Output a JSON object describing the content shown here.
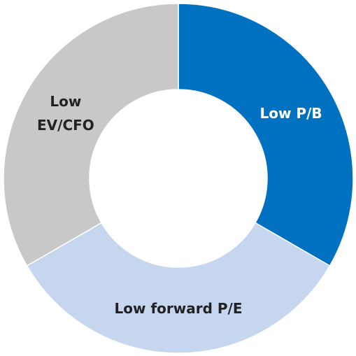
{
  "chart_data": {
    "type": "donut",
    "categories": [
      "Low P/B",
      "Low forward P/E",
      "Low EV/CFO"
    ],
    "values": [
      33.3,
      33.3,
      33.3
    ],
    "colors": [
      "#0070c0",
      "#c6d6ef",
      "#c8c8c8"
    ]
  }
}
